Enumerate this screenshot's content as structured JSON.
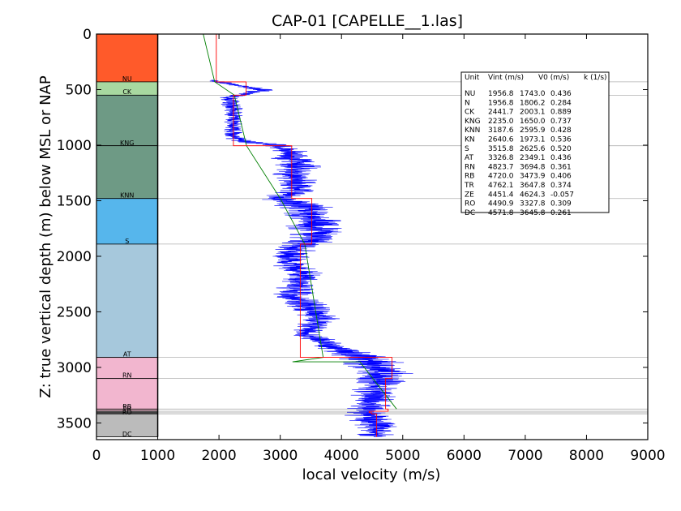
{
  "chart_data": {
    "type": "line",
    "title": "CAP-01 [CAPELLE__1.las]",
    "xlabel": "local velocity (m/s)",
    "ylabel": "Z: true vertical depth (m) below MSL or NAP",
    "xlim": [
      0,
      9000
    ],
    "ylim": [
      3650,
      0
    ],
    "y_inverted": true,
    "xticks": [
      "0",
      "1000",
      "2000",
      "3000",
      "4000",
      "5000",
      "6000",
      "7000",
      "8000",
      "9000"
    ],
    "yticks": [
      "0",
      "500",
      "1000",
      "1500",
      "2000",
      "2500",
      "3000",
      "3500"
    ],
    "grid": "horizontal lines at unit tops",
    "colors": {
      "log": "#0000ff",
      "vint": "#ff0000",
      "trend": "#007f00",
      "tops": "#b0b0b0"
    },
    "units": [
      {
        "name": "NU",
        "top": 0,
        "base": 430,
        "color": "#ff5a2a"
      },
      {
        "name": "CK",
        "top": 430,
        "base": 550,
        "color": "#a8d8a0"
      },
      {
        "name": "KNG",
        "top": 550,
        "base": 1005,
        "color": "#6e9a85"
      },
      {
        "name": "KNN",
        "top": 1005,
        "base": 1480,
        "color": "#6e9a85"
      },
      {
        "name": "S",
        "top": 1480,
        "base": 1890,
        "color": "#56b6ec"
      },
      {
        "name": "AT",
        "top": 1890,
        "base": 2910,
        "color": "#a6c8dc"
      },
      {
        "name": "RN",
        "top": 2910,
        "base": 3100,
        "color": "#f2b6cf"
      },
      {
        "name": "RB",
        "top": 3100,
        "base": 3375,
        "color": "#f2b6cf"
      },
      {
        "name": "TR",
        "top": 3375,
        "base": 3395,
        "color": "#d7a9b9"
      },
      {
        "name": "ZE",
        "top": 3395,
        "base": 3408,
        "color": "#999999"
      },
      {
        "name": "RO",
        "top": 3408,
        "base": 3418,
        "color": "#888888"
      },
      {
        "name": "DC",
        "top": 3418,
        "base": 3625,
        "color": "#bbbbbb"
      }
    ],
    "unit_labels": [
      {
        "text": "NU",
        "depth": 400
      },
      {
        "text": "CK",
        "depth": 520
      },
      {
        "text": "KNG",
        "depth": 980
      },
      {
        "text": "KNN",
        "depth": 1450
      },
      {
        "text": "S",
        "depth": 1860
      },
      {
        "text": "AT",
        "depth": 2880
      },
      {
        "text": "RN",
        "depth": 3070
      },
      {
        "text": "RB",
        "depth": 3350
      },
      {
        "text": "TR",
        "depth": 3370
      },
      {
        "text": "RO",
        "depth": 3400
      },
      {
        "text": "DC",
        "depth": 3600
      }
    ],
    "tops_depths": [
      430,
      550,
      1005,
      1480,
      1890,
      2910,
      3100,
      3375,
      3395,
      3408,
      3418
    ],
    "vint_steps": [
      {
        "unit": "NU",
        "v": 1956.8,
        "top": 0,
        "base": 430
      },
      {
        "unit": "CK",
        "v": 2441.7,
        "top": 430,
        "base": 550
      },
      {
        "unit": "KNG",
        "v": 2235.0,
        "top": 550,
        "base": 1005
      },
      {
        "unit": "KNN",
        "v": 3187.6,
        "top": 1005,
        "base": 1480
      },
      {
        "unit": "S",
        "v": 3515.8,
        "top": 1480,
        "base": 1890
      },
      {
        "unit": "AT",
        "v": 3326.8,
        "top": 1890,
        "base": 2910
      },
      {
        "unit": "RN",
        "v": 4823.7,
        "top": 2910,
        "base": 3100
      },
      {
        "unit": "RB",
        "v": 4720.0,
        "top": 3100,
        "base": 3375
      },
      {
        "unit": "TR",
        "v": 4762.1,
        "top": 3375,
        "base": 3395
      },
      {
        "unit": "ZE",
        "v": 4451.4,
        "top": 3395,
        "base": 3408
      },
      {
        "unit": "RO",
        "v": 4490.9,
        "top": 3408,
        "base": 3418
      },
      {
        "unit": "DC",
        "v": 4571.8,
        "top": 3418,
        "base": 3625
      }
    ],
    "trend_line": [
      [
        1743,
        0
      ],
      [
        1930,
        430
      ],
      [
        2250,
        550
      ],
      [
        2450,
        1005
      ],
      [
        3000,
        1480
      ],
      [
        3400,
        1890
      ],
      [
        3700,
        2910
      ],
      [
        3200,
        2950
      ],
      [
        4300,
        2950
      ],
      [
        4900,
        3375
      ]
    ],
    "log_profile": [
      [
        0,
        0,
        0
      ],
      [
        1900,
        420,
        150
      ],
      [
        2700,
        500,
        350
      ],
      [
        2150,
        580,
        250
      ],
      [
        2250,
        700,
        200
      ],
      [
        2250,
        800,
        220
      ],
      [
        2250,
        950,
        300
      ],
      [
        3000,
        1005,
        400
      ],
      [
        3200,
        1100,
        500
      ],
      [
        3300,
        1200,
        550
      ],
      [
        3200,
        1300,
        500
      ],
      [
        3300,
        1400,
        450
      ],
      [
        3000,
        1480,
        500
      ],
      [
        3400,
        1550,
        600
      ],
      [
        3500,
        1650,
        650
      ],
      [
        3600,
        1750,
        700
      ],
      [
        3550,
        1850,
        650
      ],
      [
        3200,
        1950,
        500
      ],
      [
        3100,
        2050,
        400
      ],
      [
        3400,
        2150,
        500
      ],
      [
        3300,
        2250,
        450
      ],
      [
        3200,
        2350,
        500
      ],
      [
        3400,
        2450,
        550
      ],
      [
        3700,
        2550,
        500
      ],
      [
        3500,
        2650,
        350
      ],
      [
        3400,
        2700,
        300
      ],
      [
        4500,
        2950,
        700
      ],
      [
        4700,
        3050,
        650
      ],
      [
        4600,
        3150,
        600
      ],
      [
        4550,
        3250,
        550
      ],
      [
        4450,
        3350,
        500
      ],
      [
        4500,
        3450,
        600
      ],
      [
        4600,
        3550,
        500
      ],
      [
        4550,
        3625,
        400
      ]
    ],
    "table": {
      "header": [
        "Unit",
        "Vint (m/s)",
        "V0 (m/s)",
        "k (1/s)"
      ],
      "rows": [
        [
          "NU",
          "1956.8",
          "1743.0",
          "0.436"
        ],
        [
          "N",
          "1956.8",
          "1806.2",
          "0.284"
        ],
        [
          "CK",
          "2441.7",
          "2003.1",
          "0.889"
        ],
        [
          "KNG",
          "2235.0",
          "1650.0",
          "0.737"
        ],
        [
          "KNN",
          "3187.6",
          "2595.9",
          "0.428"
        ],
        [
          "KN",
          "2640.6",
          "1973.1",
          "0.536"
        ],
        [
          "S",
          "3515.8",
          "2625.6",
          "0.520"
        ],
        [
          "AT",
          "3326.8",
          "2349.1",
          "0.436"
        ],
        [
          "RN",
          "4823.7",
          "3694.8",
          "0.361"
        ],
        [
          "RB",
          "4720.0",
          "3473.9",
          "0.406"
        ],
        [
          "TR",
          "4762.1",
          "3647.8",
          "0.374"
        ],
        [
          "ZE",
          "4451.4",
          "4624.3",
          "-0.057"
        ],
        [
          "RO",
          "4490.9",
          "3327.8",
          "0.309"
        ],
        [
          "DC",
          "4571.8",
          "3645.8",
          "0.261"
        ]
      ]
    }
  }
}
